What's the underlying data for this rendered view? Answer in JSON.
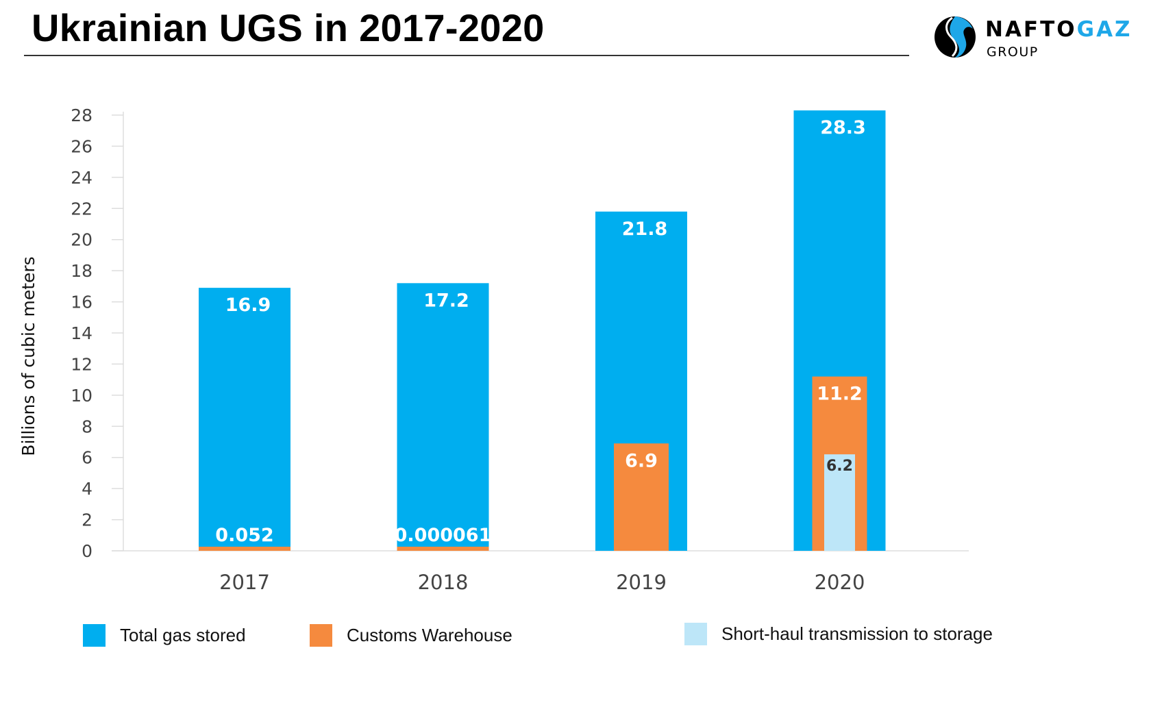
{
  "title": "Ukrainian UGS in 2017-2020",
  "logo": {
    "name": "NAFTOGAZ",
    "part1": "NAFTO",
    "part2": "GAZ",
    "sub": "GROUP",
    "icon": "naftogaz-swirl-logo"
  },
  "colors": {
    "total": "#00AEEF",
    "customs": "#F58A3E",
    "short_haul": "#BDE6F8",
    "value_label": "#FFFFFF",
    "value_label_dark": "#333333"
  },
  "chart_data": {
    "type": "bar",
    "title": "Ukrainian UGS in 2017-2020",
    "xlabel": "",
    "ylabel": "Billions of cubic meters",
    "ylim": [
      0,
      28
    ],
    "yticks": [
      0,
      2,
      4,
      6,
      8,
      10,
      12,
      14,
      16,
      18,
      20,
      22,
      24,
      26,
      28
    ],
    "grid": false,
    "legend_placement": "bottom",
    "categories": [
      "2017",
      "2018",
      "2019",
      "2020"
    ],
    "series": [
      {
        "name": "Total gas stored",
        "values": [
          16.9,
          17.2,
          21.8,
          28.3
        ],
        "labels": [
          "16.9",
          "17.2",
          "21.8",
          "28.3"
        ]
      },
      {
        "name": "Customs Warehouse",
        "values": [
          0.052,
          6.1e-05,
          6.9,
          11.2
        ],
        "labels": [
          "0.052",
          "0.000061",
          "6.9",
          "11.2"
        ]
      },
      {
        "name": "Short-haul transmission to storage",
        "values": [
          null,
          null,
          null,
          6.2
        ],
        "labels": [
          "",
          "",
          "",
          "6.2"
        ]
      }
    ]
  }
}
